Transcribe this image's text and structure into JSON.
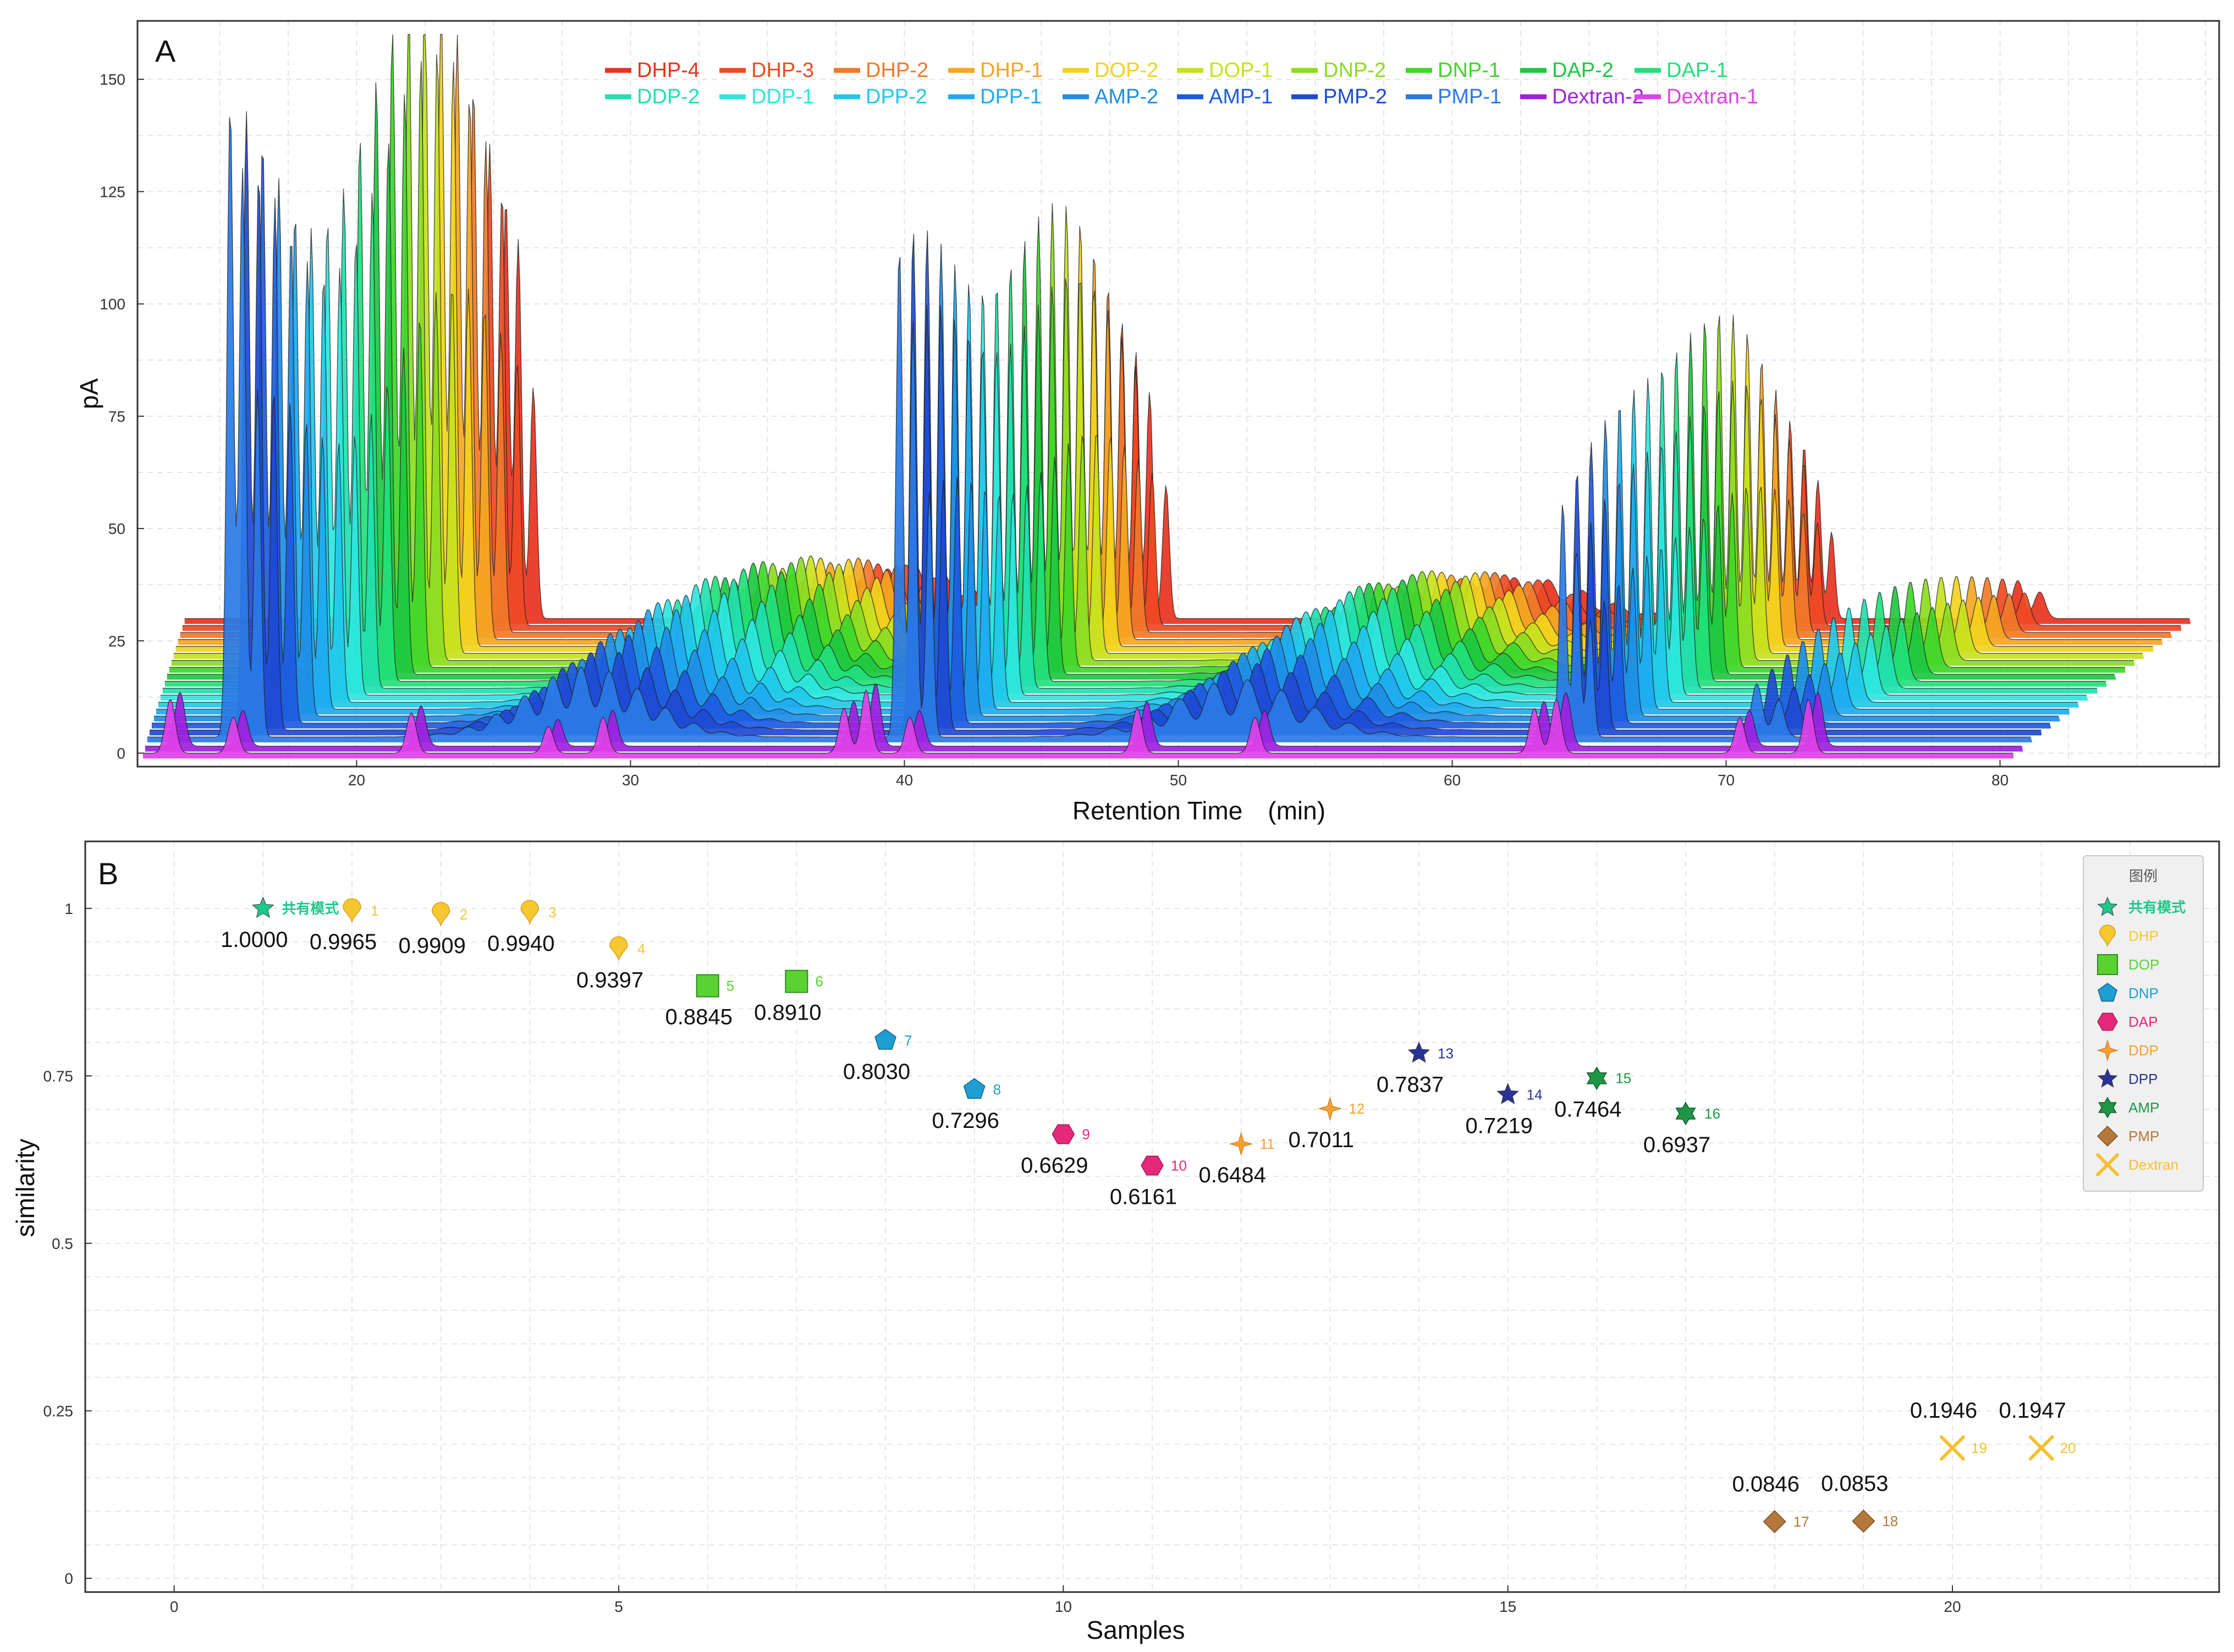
{
  "panel_a": {
    "tag": "A",
    "xlabel": "Retention Time　(min)",
    "ylabel": "pA",
    "chart_data": {
      "type": "line",
      "title": "",
      "xlabel": "Retention Time　(min)",
      "ylabel": "pA",
      "xlim": [
        12,
        88
      ],
      "ylim": [
        -3,
        163
      ],
      "x_ticks": [
        20,
        30,
        40,
        50,
        60,
        70,
        80
      ],
      "y_ticks": [
        0,
        25,
        50,
        75,
        100,
        125,
        150
      ],
      "grid": true,
      "legend_position": "top",
      "series": [
        {
          "name": "DHP-4",
          "color": "#e8321e"
        },
        {
          "name": "DHP-3",
          "color": "#ee4a24"
        },
        {
          "name": "DHP-2",
          "color": "#f07a2a"
        },
        {
          "name": "DHP-1",
          "color": "#f5a623"
        },
        {
          "name": "DOP-2",
          "color": "#f2d21e"
        },
        {
          "name": "DOP-1",
          "color": "#c8e21e"
        },
        {
          "name": "DNP-2",
          "color": "#8cdc22"
        },
        {
          "name": "DNP-1",
          "color": "#3fd62a"
        },
        {
          "name": "DAP-2",
          "color": "#1ec840"
        },
        {
          "name": "DAP-1",
          "color": "#22e07a"
        },
        {
          "name": "DDP-2",
          "color": "#22e0b0"
        },
        {
          "name": "DDP-1",
          "color": "#2ee6e0"
        },
        {
          "name": "DPP-2",
          "color": "#22c8ea"
        },
        {
          "name": "DPP-1",
          "color": "#1eaaf0"
        },
        {
          "name": "AMP-2",
          "color": "#1e8ee6"
        },
        {
          "name": "AMP-1",
          "color": "#1e5ae0"
        },
        {
          "name": "PMP-2",
          "color": "#1e4ad2"
        },
        {
          "name": "PMP-1",
          "color": "#2a7ae6"
        },
        {
          "name": "Dextran-2",
          "color": "#a020e0"
        },
        {
          "name": "Dextran-1",
          "color": "#e040e8"
        }
      ]
    }
  },
  "panel_b": {
    "tag": "B",
    "xlabel": "Samples",
    "ylabel": "similarity",
    "legend_title": "图例",
    "chart_data": {
      "type": "scatter",
      "title": "",
      "xlabel": "Samples",
      "ylabel": "similarity",
      "xlim": [
        -1,
        23
      ],
      "ylim": [
        0,
        1.1
      ],
      "x_ticks": [
        0,
        5,
        10,
        15,
        20
      ],
      "y_ticks": [
        0,
        0.25,
        0.5,
        0.75,
        1
      ],
      "y_tick_labels": [
        "0",
        "0.25",
        "0.5",
        "0.75",
        "1"
      ],
      "grid": true,
      "legend_position": "right",
      "legend": [
        {
          "name": "共有模式",
          "marker": "star-icon",
          "color": "#1ec88c"
        },
        {
          "name": "DHP",
          "marker": "drop-icon",
          "color": "#f5c830"
        },
        {
          "name": "DOP",
          "marker": "square-icon",
          "color": "#5ad232"
        },
        {
          "name": "DNP",
          "marker": "pentagon-icon",
          "color": "#1e9ed2"
        },
        {
          "name": "DAP",
          "marker": "hexagon-icon",
          "color": "#e6287a"
        },
        {
          "name": "DDP",
          "marker": "sparkle-icon",
          "color": "#f5a030"
        },
        {
          "name": "DPP",
          "marker": "star-icon",
          "color": "#2a3296"
        },
        {
          "name": "AMP",
          "marker": "hexagram-icon",
          "color": "#1e9646"
        },
        {
          "name": "PMP",
          "marker": "diamond-icon",
          "color": "#b4783c"
        },
        {
          "name": "Dextran",
          "marker": "cross-icon",
          "color": "#f5c030"
        }
      ],
      "points": [
        {
          "x": 1,
          "y": 1.0,
          "value": "1.0000",
          "index": "共有模式",
          "group": "共有模式"
        },
        {
          "x": 2,
          "y": 0.9965,
          "value": "0.9965",
          "index": "1",
          "group": "DHP"
        },
        {
          "x": 3,
          "y": 0.9909,
          "value": "0.9909",
          "index": "2",
          "group": "DHP"
        },
        {
          "x": 4,
          "y": 0.994,
          "value": "0.9940",
          "index": "3",
          "group": "DHP"
        },
        {
          "x": 5,
          "y": 0.9397,
          "value": "0.9397",
          "index": "4",
          "group": "DHP"
        },
        {
          "x": 6,
          "y": 0.8845,
          "value": "0.8845",
          "index": "5",
          "group": "DOP"
        },
        {
          "x": 7,
          "y": 0.891,
          "value": "0.8910",
          "index": "6",
          "group": "DOP"
        },
        {
          "x": 8,
          "y": 0.803,
          "value": "0.8030",
          "index": "7",
          "group": "DNP"
        },
        {
          "x": 9,
          "y": 0.7296,
          "value": "0.7296",
          "index": "8",
          "group": "DNP"
        },
        {
          "x": 10,
          "y": 0.6629,
          "value": "0.6629",
          "index": "9",
          "group": "DAP"
        },
        {
          "x": 11,
          "y": 0.6161,
          "value": "0.6161",
          "index": "10",
          "group": "DAP"
        },
        {
          "x": 12,
          "y": 0.6484,
          "value": "0.6484",
          "index": "11",
          "group": "DDP"
        },
        {
          "x": 13,
          "y": 0.7011,
          "value": "0.7011",
          "index": "12",
          "group": "DDP"
        },
        {
          "x": 14,
          "y": 0.7837,
          "value": "0.7837",
          "index": "13",
          "group": "DPP"
        },
        {
          "x": 15,
          "y": 0.7219,
          "value": "0.7219",
          "index": "14",
          "group": "DPP"
        },
        {
          "x": 16,
          "y": 0.7464,
          "value": "0.7464",
          "index": "15",
          "group": "AMP"
        },
        {
          "x": 17,
          "y": 0.6937,
          "value": "0.6937",
          "index": "16",
          "group": "AMP"
        },
        {
          "x": 18,
          "y": 0.0846,
          "value": "0.0846",
          "index": "17",
          "group": "PMP"
        },
        {
          "x": 19,
          "y": 0.0853,
          "value": "0.0853",
          "index": "18",
          "group": "PMP"
        },
        {
          "x": 20,
          "y": 0.1946,
          "value": "0.1946",
          "index": "19",
          "group": "Dextran"
        },
        {
          "x": 21,
          "y": 0.1947,
          "value": "0.1947",
          "index": "20",
          "group": "Dextran"
        }
      ]
    }
  }
}
